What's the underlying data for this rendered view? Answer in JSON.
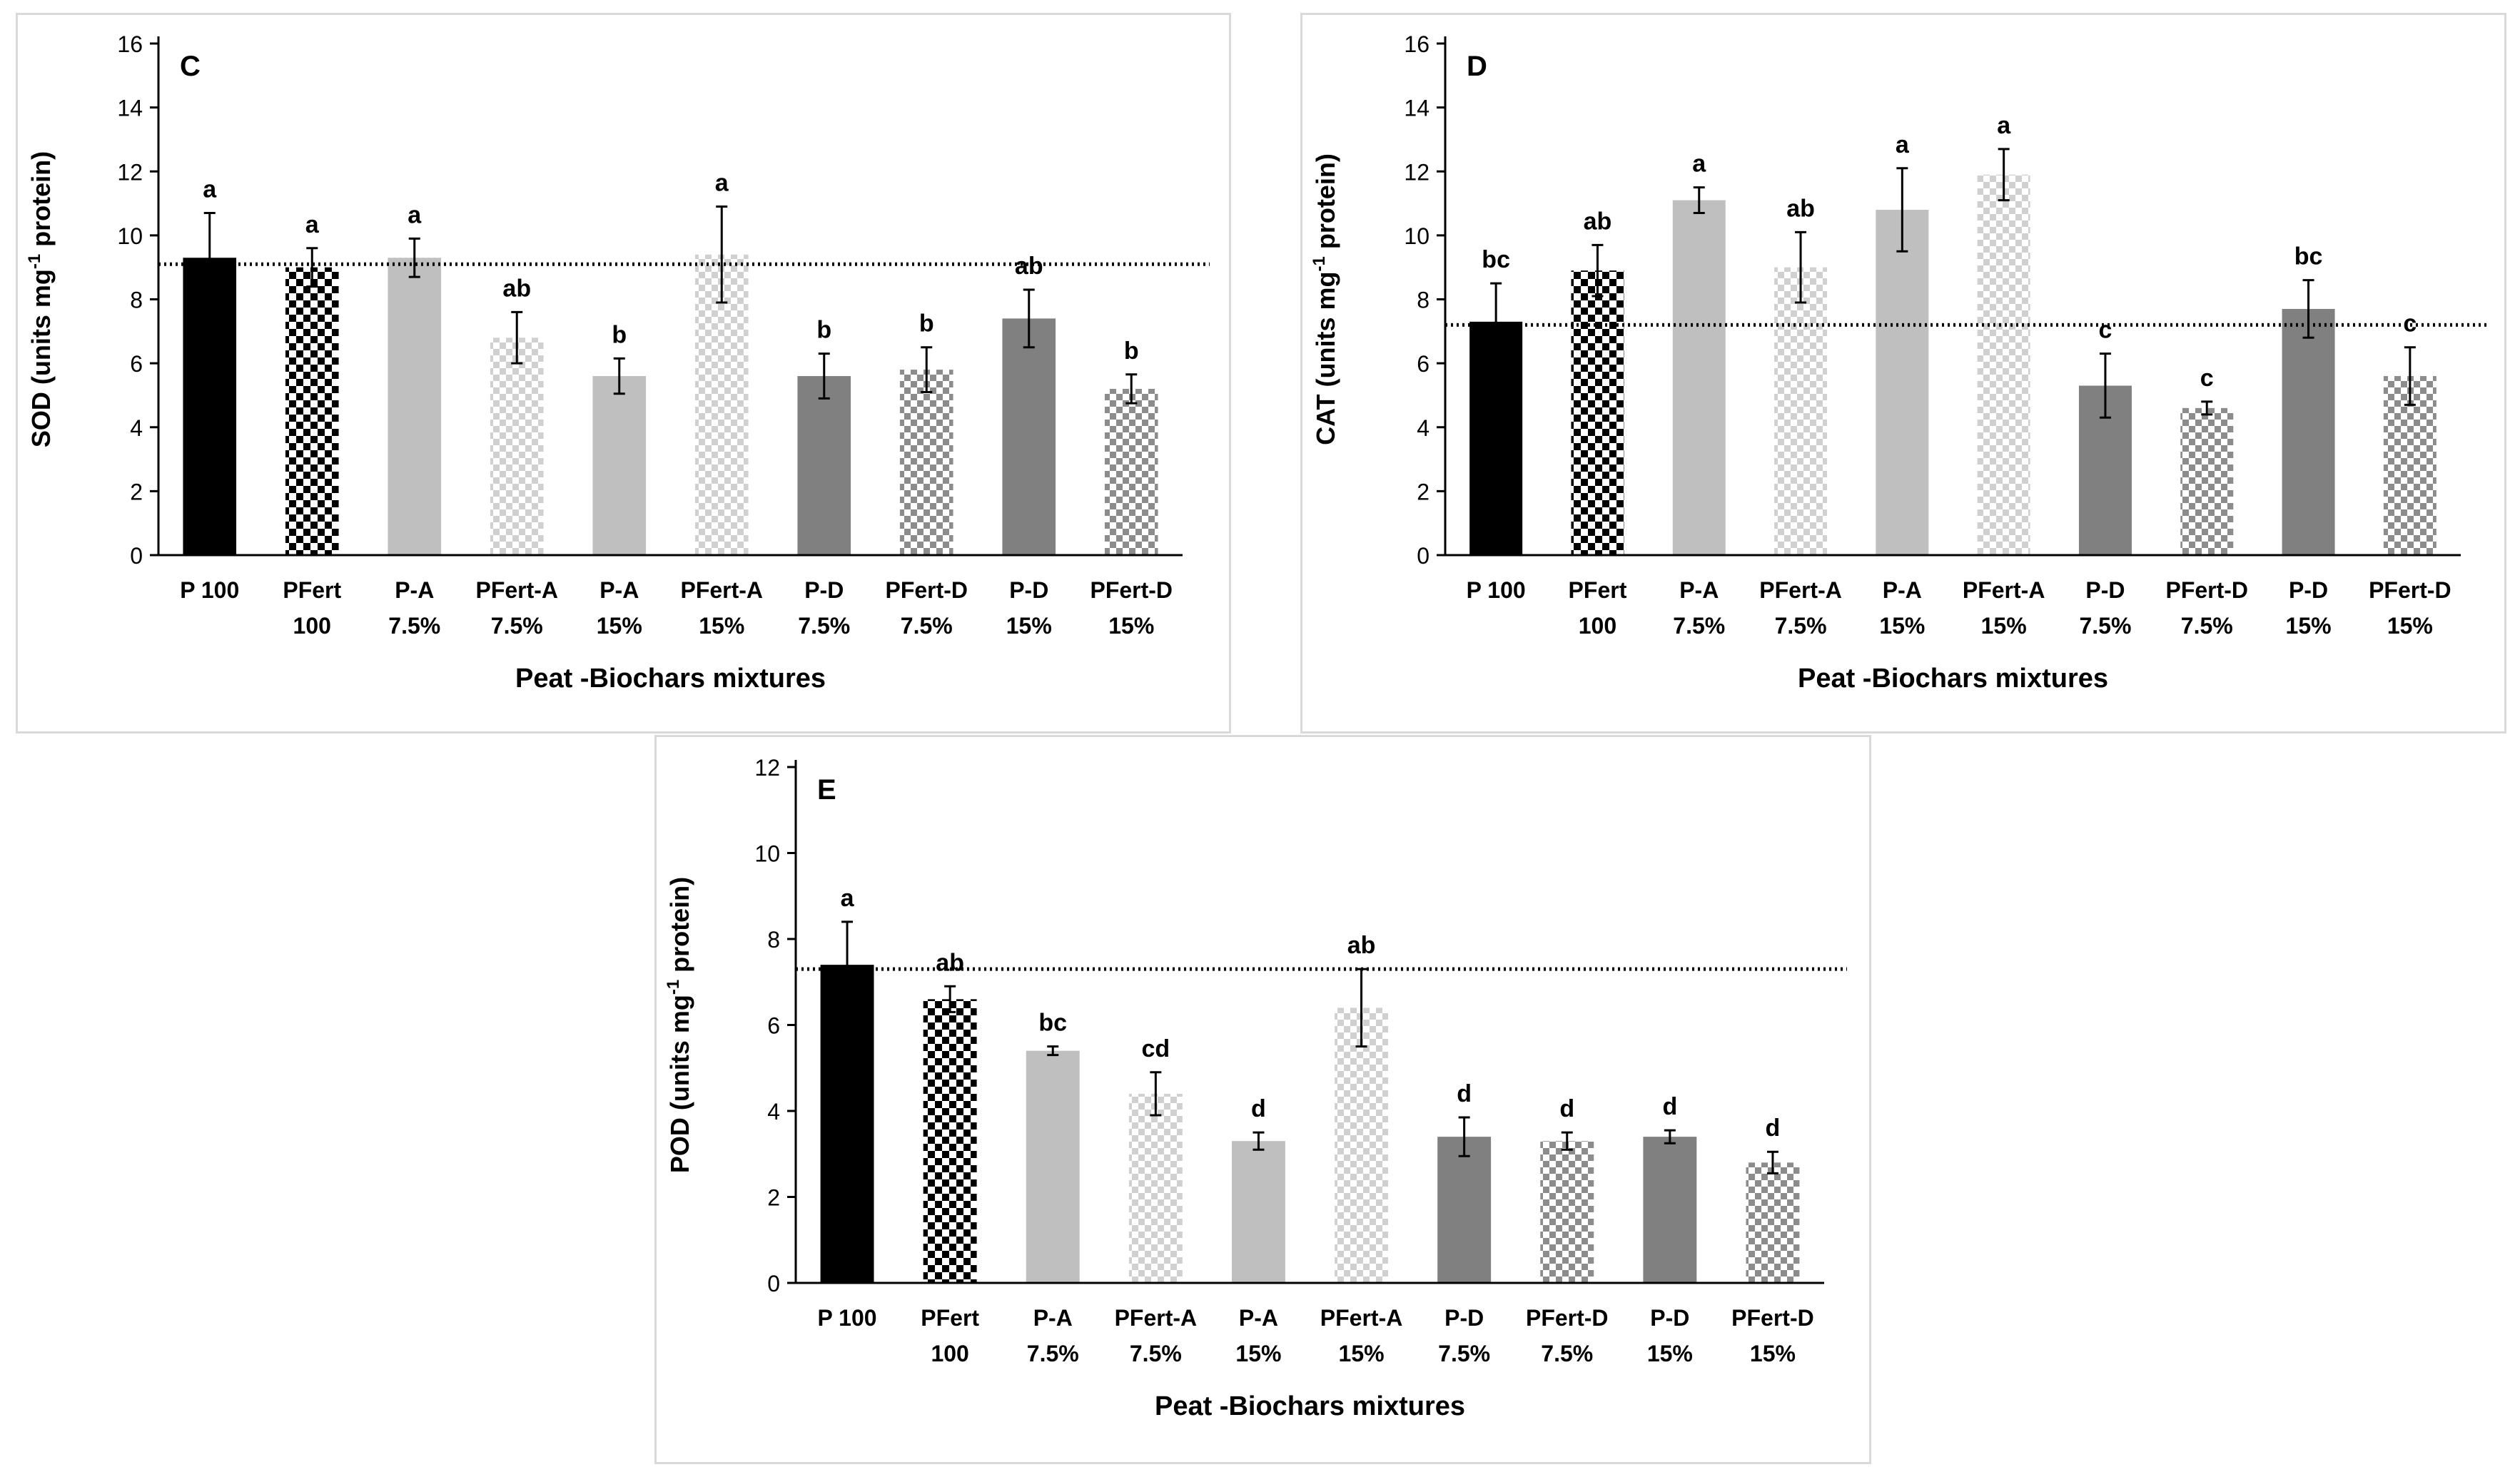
{
  "chart_data": [
    {
      "panel": "C",
      "type": "bar",
      "ylabel": "SOD (units mg",
      "ylabel_sup": "-1",
      "ylabel_end": " protein)",
      "xlabel": "Peat -Biochars mixtures",
      "ylim": [
        0,
        16
      ],
      "yticks": [
        "0",
        "2",
        "4",
        "6",
        "8",
        "10",
        "12",
        "14",
        "16"
      ],
      "categories": [
        [
          "P 100",
          ""
        ],
        [
          "PFert",
          "100"
        ],
        [
          "P-A",
          "7.5%"
        ],
        [
          "PFert-A",
          "7.5%"
        ],
        [
          "P-A",
          "15%"
        ],
        [
          "PFert-A",
          "15%"
        ],
        [
          "P-D",
          "7.5%"
        ],
        [
          "PFert-D",
          "7.5%"
        ],
        [
          "P-D",
          "15%"
        ],
        [
          "PFert-D",
          "15%"
        ]
      ],
      "values": [
        9.3,
        9.0,
        9.3,
        6.8,
        5.6,
        9.4,
        5.6,
        5.8,
        7.4,
        5.2
      ],
      "errors": [
        1.4,
        0.6,
        0.6,
        0.8,
        0.55,
        1.5,
        0.7,
        0.7,
        0.9,
        0.45
      ],
      "letters": [
        "a",
        "a",
        "a",
        "ab",
        "b",
        "a",
        "b",
        "b",
        "ab",
        "b"
      ],
      "reference_line": 9.1
    },
    {
      "panel": "D",
      "type": "bar",
      "ylabel": "CAT (units mg",
      "ylabel_sup": "-1",
      "ylabel_end": " protein)",
      "xlabel": "Peat -Biochars mixtures",
      "ylim": [
        0,
        16
      ],
      "yticks": [
        "0",
        "2",
        "4",
        "6",
        "8",
        "10",
        "12",
        "14",
        "16"
      ],
      "categories": [
        [
          "P 100",
          ""
        ],
        [
          "PFert",
          "100"
        ],
        [
          "P-A",
          "7.5%"
        ],
        [
          "PFert-A",
          "7.5%"
        ],
        [
          "P-A",
          "15%"
        ],
        [
          "PFert-A",
          "15%"
        ],
        [
          "P-D",
          "7.5%"
        ],
        [
          "PFert-D",
          "7.5%"
        ],
        [
          "P-D",
          "15%"
        ],
        [
          "PFert-D",
          "15%"
        ]
      ],
      "values": [
        7.3,
        8.9,
        11.1,
        9.0,
        10.8,
        11.9,
        5.3,
        4.6,
        7.7,
        5.6
      ],
      "errors": [
        1.2,
        0.8,
        0.4,
        1.1,
        1.3,
        0.8,
        1.0,
        0.2,
        0.9,
        0.9
      ],
      "letters": [
        "bc",
        "ab",
        "a",
        "ab",
        "a",
        "a",
        "c",
        "c",
        "bc",
        "c"
      ],
      "reference_line": 7.2
    },
    {
      "panel": "E",
      "type": "bar",
      "ylabel": "POD (units mg",
      "ylabel_sup": "-1",
      "ylabel_end": " protein)",
      "xlabel": "Peat -Biochars mixtures",
      "ylim": [
        0,
        12
      ],
      "yticks": [
        "0",
        "2",
        "4",
        "6",
        "8",
        "10",
        "12"
      ],
      "categories": [
        [
          "P 100",
          ""
        ],
        [
          "PFert",
          "100"
        ],
        [
          "P-A",
          "7.5%"
        ],
        [
          "PFert-A",
          "7.5%"
        ],
        [
          "P-A",
          "15%"
        ],
        [
          "PFert-A",
          "15%"
        ],
        [
          "P-D",
          "7.5%"
        ],
        [
          "PFert-D",
          "7.5%"
        ],
        [
          "P-D",
          "15%"
        ],
        [
          "PFert-D",
          "15%"
        ]
      ],
      "values": [
        7.4,
        6.6,
        5.4,
        4.4,
        3.3,
        6.4,
        3.4,
        3.3,
        3.4,
        2.8
      ],
      "errors": [
        1.0,
        0.3,
        0.1,
        0.5,
        0.2,
        0.9,
        0.45,
        0.2,
        0.15,
        0.25
      ],
      "letters": [
        "a",
        "ab",
        "bc",
        "cd",
        "d",
        "ab",
        "d",
        "d",
        "d",
        "d"
      ],
      "reference_line": 7.3
    }
  ],
  "styles": {
    "fills": [
      "#000000",
      "url(#checkDark)",
      "#bfbfbf",
      "url(#checkLight)",
      "#bfbfbf",
      "url(#checkLight)",
      "#808080",
      "url(#checkMid)",
      "#808080",
      "url(#checkMid)"
    ],
    "axis_color": "#000000",
    "error_color": "#000000",
    "ref_line_color": "#000000"
  }
}
